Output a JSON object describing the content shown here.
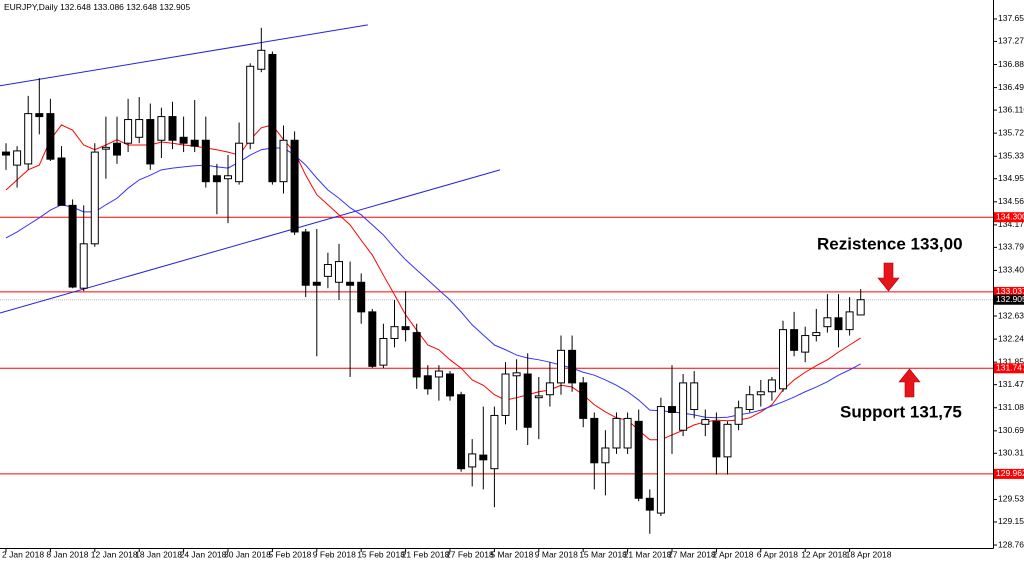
{
  "chart_data": {
    "type": "candlestick",
    "header": {
      "symbol": "EURJPY,Daily",
      "ohlc": [
        132.648,
        133.086,
        132.648,
        132.905
      ]
    },
    "categories": [
      "2 Jan 2018",
      null,
      null,
      null,
      "8 Jan 2018",
      null,
      null,
      null,
      "12 Jan 2018",
      null,
      null,
      null,
      "18 Jan 2018",
      null,
      null,
      null,
      "24 Jan 2018",
      null,
      null,
      null,
      "30 Jan 2018",
      null,
      null,
      null,
      "5 Feb 2018",
      null,
      null,
      null,
      "9 Feb 2018",
      null,
      null,
      null,
      "15 Feb 2018",
      null,
      null,
      null,
      "21 Feb 2018",
      null,
      null,
      null,
      "27 Feb 2018",
      null,
      null,
      null,
      "5 Mar 2018",
      null,
      null,
      null,
      "9 Mar 2018",
      null,
      null,
      null,
      "15 Mar 2018",
      null,
      null,
      null,
      "21 Mar 2018",
      null,
      null,
      null,
      "27 Mar 2018",
      null,
      null,
      null,
      "2 Apr 2018",
      null,
      null,
      null,
      "6 Apr 2018",
      null,
      null,
      null,
      "12 Apr 2018",
      null,
      null,
      null,
      "18 Apr 2018",
      null
    ],
    "open": [
      135.4,
      135.18,
      135.2,
      136.05,
      136.05,
      135.3,
      134.5,
      133.1,
      133.85,
      135.45,
      135.55,
      135.55,
      135.65,
      135.95,
      135.6,
      136.0,
      135.65,
      135.6,
      135.6,
      135.0,
      134.95,
      134.9,
      135.55,
      136.8,
      137.05,
      134.9,
      135.6,
      134.05,
      133.2,
      133.3,
      133.2,
      133.2,
      133.2,
      132.7,
      131.8,
      132.25,
      132.45,
      132.35,
      131.62,
      131.6,
      131.65,
      131.3,
      130.08,
      130.28,
      130.05,
      130.95,
      131.62,
      131.65,
      131.25,
      131.3,
      131.5,
      132.05,
      131.5,
      130.9,
      130.15,
      130.4,
      130.4,
      130.85,
      129.55,
      129.3,
      131.1,
      130.7,
      131.05,
      130.8,
      130.85,
      130.25,
      130.8,
      131.05,
      131.3,
      131.35,
      131.4,
      132.4,
      132.02,
      132.3,
      132.45,
      132.6,
      132.4,
      132.648
    ],
    "high": [
      135.55,
      135.5,
      136.35,
      136.65,
      136.3,
      135.5,
      134.6,
      134.5,
      135.55,
      136.0,
      136.0,
      136.3,
      136.33,
      136.22,
      136.15,
      136.25,
      136.0,
      136.28,
      136.0,
      135.2,
      135.35,
      135.9,
      136.9,
      137.5,
      137.1,
      135.85,
      135.75,
      134.1,
      134.1,
      133.7,
      133.85,
      133.55,
      133.35,
      132.75,
      132.5,
      132.9,
      133.05,
      132.5,
      131.8,
      131.8,
      131.7,
      131.35,
      130.55,
      131.1,
      131.1,
      131.85,
      131.9,
      132.0,
      131.6,
      131.85,
      132.3,
      132.3,
      131.6,
      131.0,
      130.7,
      131.0,
      131.0,
      131.05,
      129.7,
      131.25,
      131.8,
      131.65,
      131.7,
      131.05,
      131.0,
      130.85,
      131.2,
      131.45,
      131.55,
      131.6,
      132.55,
      132.7,
      132.45,
      132.75,
      133.0,
      133.0,
      132.95,
      133.086
    ],
    "low": [
      135.1,
      134.8,
      135.1,
      135.7,
      135.25,
      134.5,
      133.1,
      133.05,
      133.8,
      134.95,
      135.2,
      135.4,
      135.55,
      135.1,
      135.3,
      135.45,
      135.4,
      135.4,
      134.8,
      134.35,
      134.2,
      134.85,
      135.45,
      136.75,
      134.85,
      134.7,
      134.0,
      132.95,
      131.95,
      133.1,
      132.9,
      131.6,
      132.5,
      131.75,
      131.75,
      132.1,
      132.2,
      131.4,
      131.3,
      131.2,
      131.2,
      130.0,
      129.75,
      129.7,
      129.4,
      130.8,
      130.7,
      130.45,
      130.55,
      131.1,
      131.3,
      131.35,
      130.75,
      129.7,
      129.6,
      130.3,
      130.3,
      129.5,
      128.95,
      129.25,
      130.3,
      130.6,
      130.9,
      130.6,
      129.95,
      129.95,
      130.7,
      131.0,
      131.1,
      131.2,
      131.35,
      131.95,
      131.85,
      132.2,
      132.35,
      132.1,
      132.3,
      132.648
    ],
    "close": [
      135.35,
      135.42,
      136.05,
      136.0,
      135.28,
      134.5,
      133.12,
      133.85,
      135.4,
      135.48,
      135.35,
      135.95,
      135.95,
      135.2,
      136.0,
      135.6,
      135.55,
      135.5,
      134.9,
      134.9,
      135.0,
      135.55,
      136.85,
      137.12,
      134.9,
      135.6,
      134.05,
      133.15,
      133.15,
      133.5,
      133.55,
      133.15,
      132.7,
      131.78,
      132.25,
      132.45,
      132.4,
      131.6,
      131.4,
      131.7,
      131.28,
      130.05,
      130.3,
      130.2,
      130.95,
      131.65,
      131.67,
      130.75,
      131.28,
      131.5,
      132.05,
      131.5,
      130.9,
      130.15,
      130.4,
      130.9,
      130.9,
      129.55,
      129.35,
      131.1,
      131.0,
      131.5,
      131.5,
      130.88,
      130.25,
      130.8,
      131.08,
      131.3,
      131.35,
      131.55,
      132.4,
      132.05,
      132.3,
      132.35,
      132.6,
      132.4,
      132.7,
      132.905
    ],
    "bull_color": "#ffffff",
    "bear_color": "#000000",
    "ma_lines": [
      {
        "color": "#ff0000",
        "values": [
          134.76,
          134.93,
          135.1,
          135.18,
          135.61,
          135.86,
          135.77,
          135.52,
          135.44,
          135.52,
          135.61,
          135.52,
          135.52,
          135.52,
          135.57,
          135.55,
          135.52,
          135.5,
          135.47,
          135.44,
          135.4,
          135.35,
          135.61,
          135.81,
          135.86,
          135.61,
          135.4,
          135.01,
          134.68,
          134.51,
          134.34,
          134.17,
          133.91,
          133.66,
          133.32,
          132.99,
          132.65,
          132.39,
          132.14,
          132.06,
          131.89,
          131.75,
          131.55,
          131.46,
          131.3,
          131.21,
          131.25,
          131.3,
          131.35,
          131.38,
          131.46,
          131.43,
          131.3,
          131.13,
          131.01,
          130.91,
          130.87,
          130.7,
          130.54,
          130.54,
          130.62,
          130.7,
          130.79,
          130.84,
          130.87,
          130.86,
          130.87,
          130.91,
          131.01,
          131.13,
          131.38,
          131.55,
          131.68,
          131.79,
          131.89,
          132.02,
          132.14,
          132.26
        ]
      },
      {
        "color": "#3333ff",
        "values": [
          133.95,
          134.05,
          134.17,
          134.29,
          134.42,
          134.51,
          134.47,
          134.39,
          134.39,
          134.51,
          134.62,
          134.79,
          134.93,
          135.01,
          135.1,
          135.13,
          135.15,
          135.17,
          135.18,
          135.15,
          135.13,
          135.23,
          135.35,
          135.44,
          135.47,
          135.47,
          135.35,
          135.18,
          134.96,
          134.76,
          134.62,
          134.46,
          134.34,
          134.17,
          134.0,
          133.78,
          133.58,
          133.41,
          133.24,
          133.07,
          132.9,
          132.7,
          132.48,
          132.31,
          132.14,
          132.06,
          131.97,
          131.92,
          131.89,
          131.85,
          131.8,
          131.75,
          131.68,
          131.63,
          131.55,
          131.46,
          131.35,
          131.21,
          131.04,
          131.03,
          131.01,
          130.99,
          130.96,
          130.92,
          130.91,
          130.92,
          130.96,
          130.99,
          131.04,
          131.11,
          131.18,
          131.26,
          131.35,
          131.43,
          131.52,
          131.63,
          131.72,
          131.82
        ]
      }
    ],
    "trendlines": [
      {
        "color": "#2222dd",
        "x": [
          -0.54,
          32.6
        ],
        "values": [
          136.52,
          137.55
        ]
      },
      {
        "color": "#2222dd",
        "x": [
          -0.54,
          44.5
        ],
        "values": [
          132.68,
          135.1
        ]
      }
    ],
    "hlines": [
      {
        "value": {
          "value": 134.3,
          "label": "134.300"
        },
        "color": "#ff0000"
      },
      {
        "value": 133.037,
        "color": "#ff0000"
      },
      {
        "value": 131.747,
        "color": "#ff0000"
      },
      {
        "value": 129.962,
        "color": "#ff0000"
      }
    ],
    "last_price": 132.905,
    "ylim": [
      128.71,
      137.97
    ],
    "yticks": [
      {
        "value": 137.65,
        "label": "137.650"
      },
      {
        "value": 137.27,
        "label": "137.270"
      },
      {
        "value": 136.88,
        "label": "136.880"
      },
      {
        "value": 136.49,
        "label": "136.490"
      },
      {
        "value": 136.11,
        "label": "136.110"
      },
      {
        "value": 135.72,
        "label": "135.720"
      },
      {
        "value": 135.33,
        "label": "135.330"
      },
      {
        "value": 134.95,
        "label": "134.950"
      },
      {
        "value": 134.56,
        "label": "134.560"
      },
      {
        "value": 134.17,
        "label": "134.170"
      },
      {
        "value": 133.79,
        "label": "133.790"
      },
      {
        "value": 133.4,
        "label": "133.400"
      },
      {
        "value": 132.63,
        "label": "132.630"
      },
      {
        "value": 132.24,
        "label": "132.240"
      },
      {
        "value": 131.85,
        "label": "131.850"
      },
      {
        "value": 131.47,
        "label": "131.470"
      },
      {
        "value": 131.08,
        "label": "131.080"
      },
      {
        "value": 130.69,
        "label": "130.690"
      },
      {
        "value": 130.31,
        "label": "130.310"
      },
      {
        "value": 129.53,
        "label": "129.530"
      },
      {
        "value": 129.15,
        "label": "129.150"
      },
      {
        "value": 128.76,
        "label": "128.760"
      }
    ],
    "annotations": [
      "Rezistence 133,00",
      "Support 131,75"
    ]
  }
}
